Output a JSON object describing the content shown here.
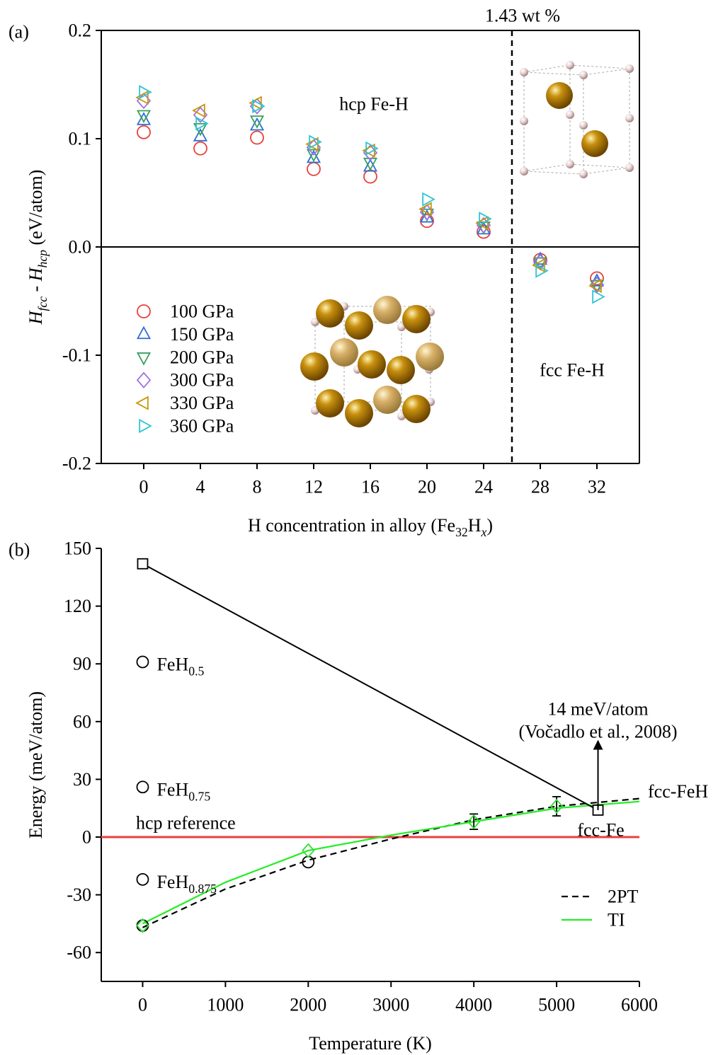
{
  "chart_data": [
    {
      "type": "scatter",
      "panel_label": "(a)",
      "xlabel": [
        "H concentration in alloy (Fe",
        "32",
        "H",
        "x",
        ")"
      ],
      "ylabel": [
        "H",
        "fcc",
        " - H",
        "hcp",
        " (eV/atom)"
      ],
      "xlim": [
        -3,
        35
      ],
      "ylim": [
        -0.2,
        0.2
      ],
      "xticks": [
        0,
        4,
        8,
        12,
        16,
        20,
        24,
        28,
        32
      ],
      "yticks": [
        -0.2,
        -0.1,
        {
          "value": 0,
          "label": "0.0"
        },
        0.1,
        0.2
      ],
      "box": true,
      "zero_line": 0,
      "vline": {
        "x": 26,
        "label": "1.43 wt %"
      },
      "annotations": [
        "hcp Fe-H",
        "fcc Fe-H"
      ],
      "legend": "lower left",
      "x": [
        0,
        4,
        8,
        12,
        16,
        20,
        24,
        28,
        32
      ],
      "series": [
        {
          "name": "100 GPa",
          "color": "#e8413a",
          "marker": "circle",
          "values": [
            0.106,
            0.091,
            0.101,
            0.072,
            0.065,
            0.024,
            0.014,
            -0.012,
            -0.029
          ]
        },
        {
          "name": "150 GPa",
          "color": "#2a6fd6",
          "marker": "triangle-up",
          "values": [
            0.117,
            0.102,
            0.112,
            0.082,
            0.074,
            0.027,
            0.016,
            -0.012,
            -0.032
          ]
        },
        {
          "name": "200 GPa",
          "color": "#3aa05c",
          "marker": "triangle-down",
          "values": [
            0.122,
            0.11,
            0.117,
            0.086,
            0.078,
            0.031,
            0.019,
            -0.014,
            -0.035
          ]
        },
        {
          "name": "300 GPa",
          "color": "#a070e0",
          "marker": "diamond",
          "values": [
            0.135,
            0.122,
            0.13,
            0.092,
            0.087,
            0.032,
            0.02,
            -0.014,
            -0.035
          ]
        },
        {
          "name": "330 GPa",
          "color": "#c8960a",
          "marker": "triangle-left",
          "values": [
            0.138,
            0.126,
            0.133,
            0.095,
            0.089,
            0.035,
            0.022,
            -0.017,
            -0.036
          ]
        },
        {
          "name": "360 GPa",
          "color": "#2ec4d4",
          "marker": "triangle-right",
          "values": [
            0.143,
            0.114,
            0.13,
            0.097,
            0.091,
            0.044,
            0.026,
            -0.022,
            -0.046
          ]
        }
      ]
    },
    {
      "type": "line",
      "panel_label": "(b)",
      "xlabel": [
        "Temperature (K)"
      ],
      "ylabel": [
        "Energy (meV/atom)"
      ],
      "xlim": [
        -500,
        6000
      ],
      "ylim": [
        -75,
        150
      ],
      "xticks": [
        0,
        1000,
        2000,
        3000,
        4000,
        5000,
        6000
      ],
      "yticks": [
        -60,
        -30,
        0,
        30,
        60,
        90,
        120,
        150
      ],
      "box": false,
      "legend": "lower right",
      "hline": {
        "value": 0,
        "label": "hcp reference",
        "color": "#e84040"
      },
      "series": [
        {
          "name": "2PT",
          "color": "#000000",
          "dash": true,
          "end_label": "fcc-FeH",
          "x": [
            0,
            1000,
            2000,
            3000,
            4000,
            5000,
            6000
          ],
          "values": [
            -47,
            -27,
            -12,
            -1,
            9,
            16,
            20
          ]
        },
        {
          "name": "TI",
          "color": "#22ee22",
          "x": [
            0,
            1000,
            2000,
            3000,
            4000,
            5000,
            6000
          ],
          "values": [
            -45,
            -23.5,
            -7,
            1,
            8,
            15,
            18.5
          ]
        }
      ],
      "points": [
        {
          "marker": "circle",
          "color": "#000000",
          "x": [
            0,
            2000
          ],
          "values": [
            -46,
            -13
          ]
        },
        {
          "marker": "diamond",
          "color": "#33dd33",
          "x": [
            0,
            2000,
            4000,
            5000
          ],
          "values": [
            -46,
            -7,
            8,
            16
          ],
          "errors": [
            0,
            0,
            4,
            5
          ]
        },
        {
          "marker": "square",
          "color": "#000000",
          "line": true,
          "label": "fcc-Fe",
          "x": [
            0,
            5500
          ],
          "values": [
            142,
            14
          ]
        },
        {
          "marker": "circle",
          "color": "#000000",
          "x": [
            0,
            0,
            0
          ],
          "values": [
            91,
            26,
            -22
          ],
          "labels": [
            [
              "FeH",
              "0.5"
            ],
            [
              "FeH",
              "0.75"
            ],
            [
              "FeH",
              "0.875"
            ]
          ]
        }
      ],
      "arrow": {
        "x": 5500,
        "from": 14,
        "to": 50,
        "labels": [
          "14 meV/atom",
          "(Vočadlo et al., 2008)"
        ]
      }
    }
  ]
}
